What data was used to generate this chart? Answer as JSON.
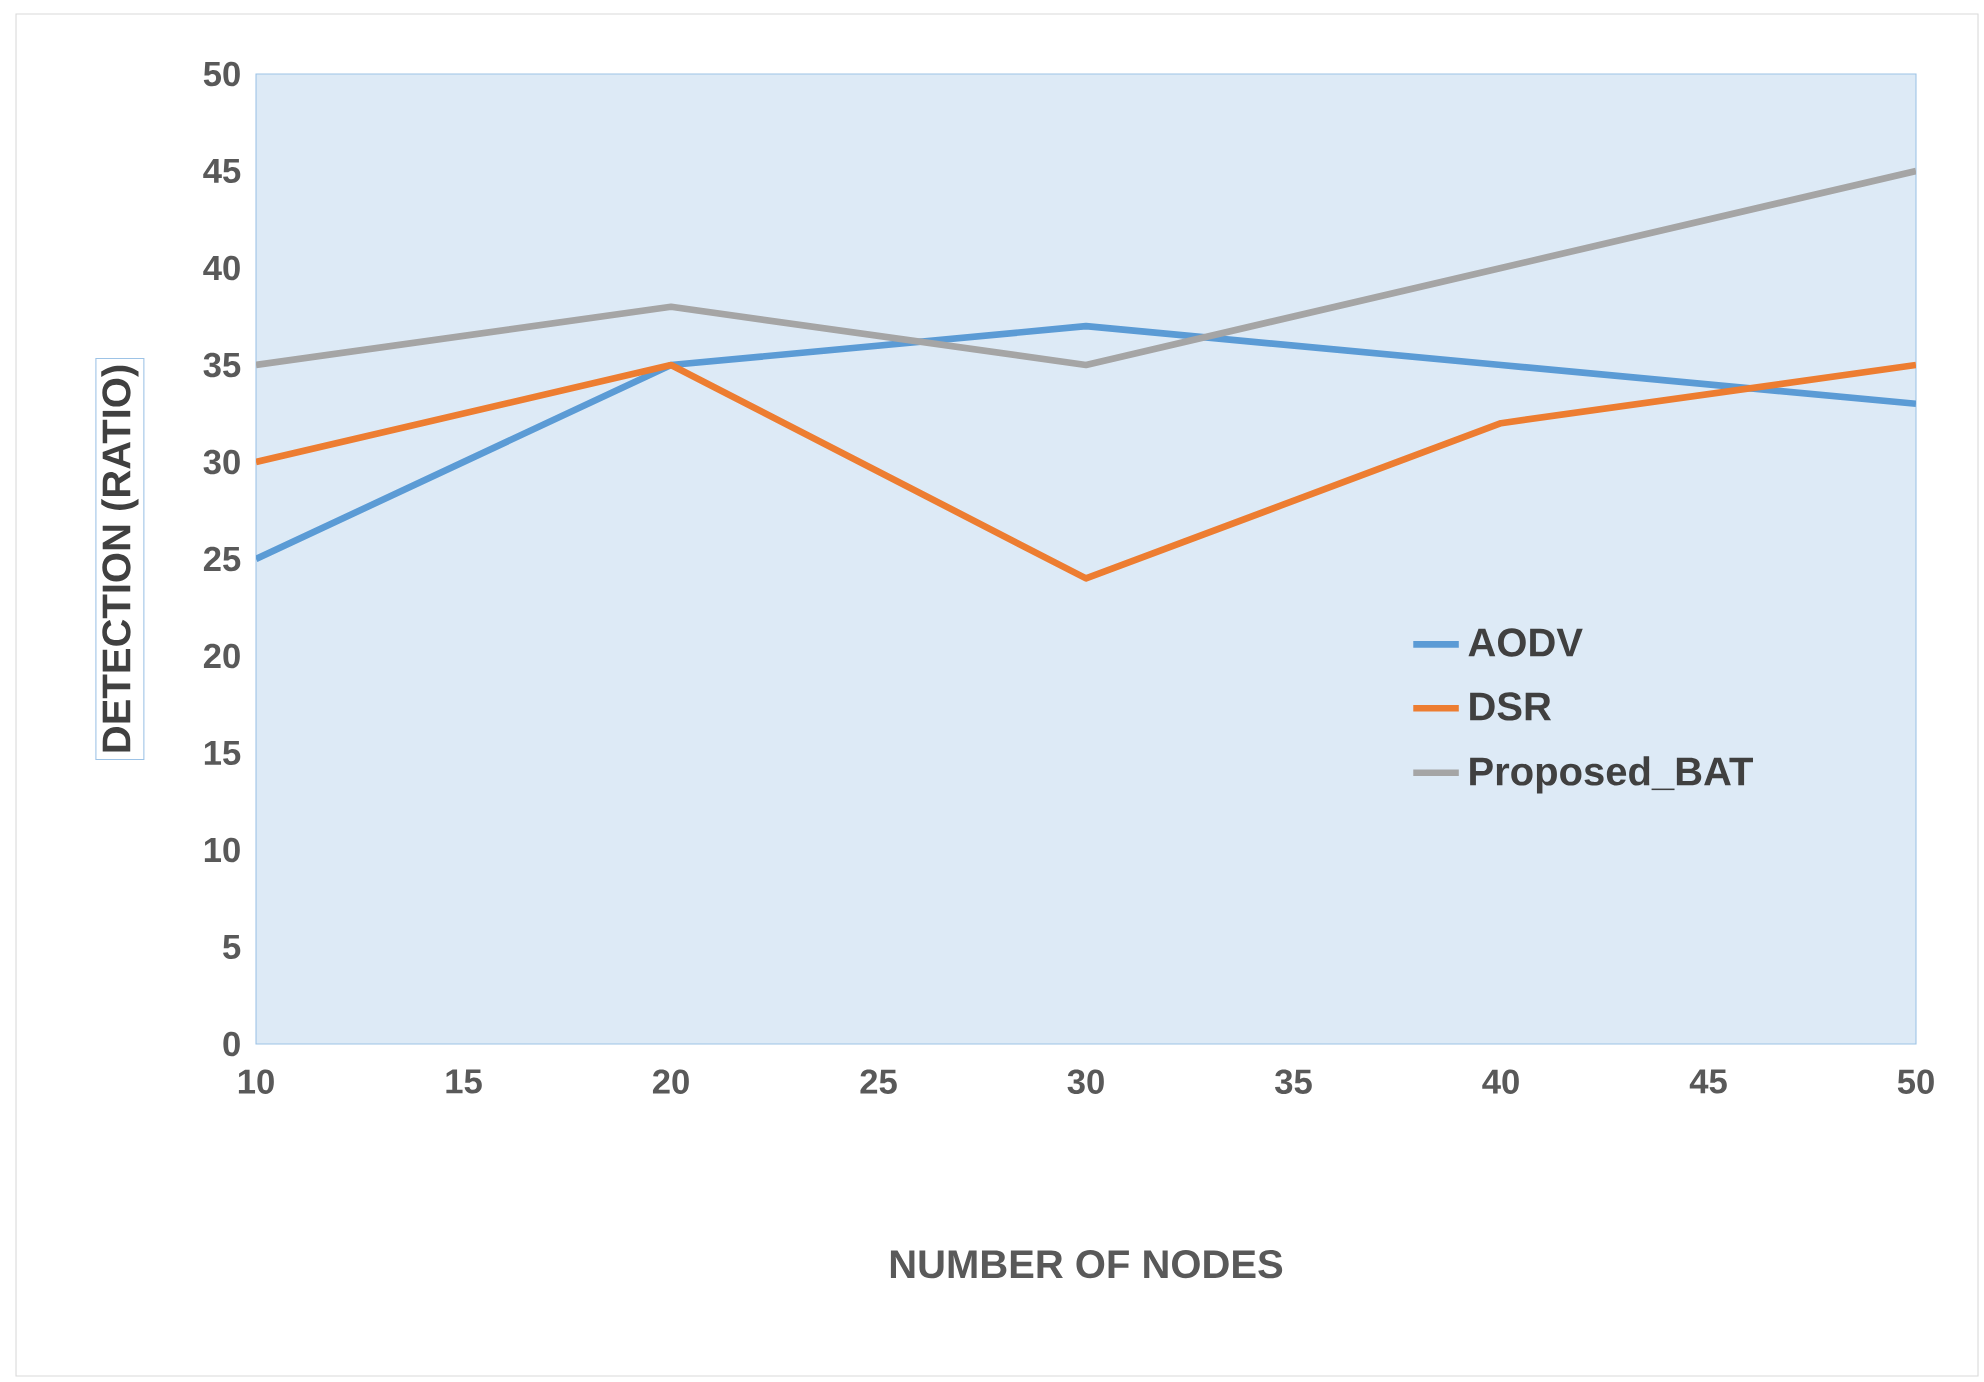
{
  "chart_data": {
    "type": "line",
    "xlabel": "NUMBER OF NODES",
    "ylabel": "DETECTION (RATIO)",
    "x": [
      10,
      20,
      30,
      40,
      50
    ],
    "series": [
      {
        "name": "AODV",
        "color": "#5b9bd5",
        "values": [
          25,
          35,
          37,
          35,
          33
        ]
      },
      {
        "name": "DSR",
        "color": "#ed7d31",
        "values": [
          30,
          35,
          24,
          32,
          35
        ]
      },
      {
        "name": "Proposed_BAT",
        "color": "#a5a5a5",
        "values": [
          35,
          38,
          35,
          40,
          45
        ]
      }
    ],
    "xlim": [
      10,
      50
    ],
    "ylim": [
      0,
      50
    ],
    "xticks": [
      10,
      15,
      20,
      25,
      30,
      35,
      40,
      45,
      50
    ],
    "yticks": [
      0,
      5,
      10,
      15,
      20,
      25,
      30,
      35,
      40,
      45,
      50
    ],
    "legend": "right"
  }
}
